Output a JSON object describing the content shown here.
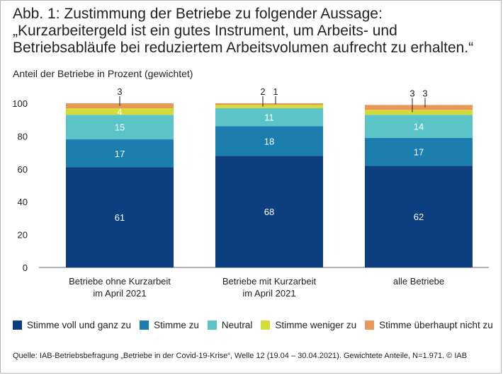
{
  "title": "Abb. 1: Zustimmung der Betriebe zu folgender Aussage: „Kurzarbeitergeld ist ein gutes Instrument, um Arbeits- und Betriebsabläufe bei reduziertem Arbeitsvolumen aufrecht zu erhalten.“",
  "source": "Quelle: IAB-Betriebsbefragung „Betriebe in der Covid-19-Krise“, Welle 12 (19.04 – 30.04.2021). Gewichtete Anteile, N=1.971. © IAB",
  "chart_data": {
    "type": "bar",
    "stacked": true,
    "title": "Abb. 1: Zustimmung der Betriebe zu folgender Aussage",
    "ylabel": "Anteil der Betriebe in Prozent (gewichtet)",
    "xlabel": "",
    "ylim": [
      0,
      100
    ],
    "yticks": [
      0,
      20,
      40,
      60,
      80,
      100
    ],
    "categories": [
      [
        "Betriebe ohne Kurzarbeit",
        "im April 2021"
      ],
      [
        "Betriebe mit Kurzarbeit",
        "im April 2021"
      ],
      [
        "alle Betriebe"
      ]
    ],
    "series": [
      {
        "name": "Stimme voll und ganz zu",
        "color": "#0d3f80",
        "values": [
          61,
          68,
          62
        ],
        "label_color": "#ffffff"
      },
      {
        "name": "Stimme zu",
        "color": "#1b7eae",
        "values": [
          17,
          18,
          17
        ],
        "label_color": "#ffffff"
      },
      {
        "name": "Neutral",
        "color": "#5ac4c8",
        "values": [
          15,
          11,
          14
        ],
        "label_color": "#ffffff"
      },
      {
        "name": "Stimme weniger zu",
        "color": "#d4dc3a",
        "values": [
          4,
          2,
          3
        ],
        "label_color": "#ffffff"
      },
      {
        "name": "Stimme überhaupt nicht zu",
        "color": "#e9965a",
        "values": [
          3,
          1,
          3
        ],
        "label_color": "#1a1a1a"
      }
    ],
    "legend_position": "bottom"
  }
}
